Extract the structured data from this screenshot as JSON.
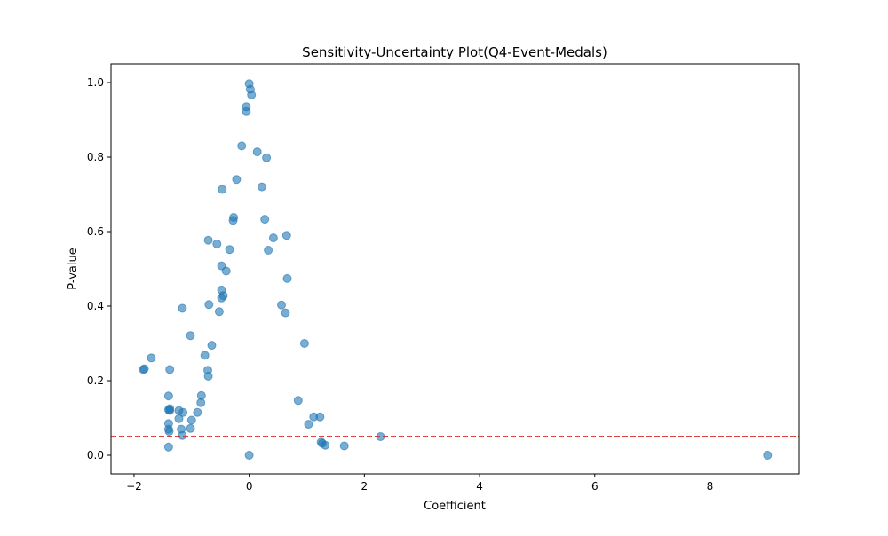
{
  "chart_data": {
    "type": "scatter",
    "title": "Sensitivity-Uncertainty Plot(Q4-Event-Medals)",
    "xlabel": "Coefficient",
    "ylabel": "P-value",
    "xlim": [
      -2.4,
      9.55
    ],
    "ylim": [
      -0.05,
      1.05
    ],
    "xticks": [
      -2,
      0,
      2,
      4,
      6,
      8
    ],
    "yticks": [
      0.0,
      0.2,
      0.4,
      0.6,
      0.8,
      1.0
    ],
    "xtick_labels": [
      "−2",
      "0",
      "2",
      "4",
      "6",
      "8"
    ],
    "ytick_labels": [
      "0.0",
      "0.2",
      "0.4",
      "0.6",
      "0.8",
      "1.0"
    ],
    "grid": false,
    "threshold": {
      "y": 0.05,
      "color": "#d62728",
      "style": "dashed"
    },
    "point_color": "#1f77b4",
    "point_alpha": 0.6,
    "points": [
      [
        0.0,
        0.997
      ],
      [
        0.02,
        0.982
      ],
      [
        0.04,
        0.967
      ],
      [
        -0.05,
        0.935
      ],
      [
        -0.05,
        0.922
      ],
      [
        -0.13,
        0.83
      ],
      [
        0.14,
        0.814
      ],
      [
        0.3,
        0.798
      ],
      [
        -0.22,
        0.74
      ],
      [
        0.22,
        0.72
      ],
      [
        -0.47,
        0.713
      ],
      [
        -0.27,
        0.638
      ],
      [
        -0.28,
        0.63
      ],
      [
        0.27,
        0.633
      ],
      [
        -0.71,
        0.577
      ],
      [
        -0.56,
        0.567
      ],
      [
        0.65,
        0.59
      ],
      [
        0.42,
        0.583
      ],
      [
        -0.34,
        0.552
      ],
      [
        0.33,
        0.55
      ],
      [
        -0.48,
        0.508
      ],
      [
        -0.4,
        0.494
      ],
      [
        0.66,
        0.474
      ],
      [
        -0.48,
        0.443
      ],
      [
        -0.45,
        0.428
      ],
      [
        -0.48,
        0.422
      ],
      [
        -0.7,
        0.404
      ],
      [
        0.56,
        0.403
      ],
      [
        -1.16,
        0.394
      ],
      [
        -0.52,
        0.385
      ],
      [
        0.63,
        0.382
      ],
      [
        -1.02,
        0.321
      ],
      [
        -0.65,
        0.295
      ],
      [
        0.96,
        0.3
      ],
      [
        -1.7,
        0.261
      ],
      [
        -0.77,
        0.268
      ],
      [
        -1.82,
        0.232
      ],
      [
        -1.84,
        0.23
      ],
      [
        -1.38,
        0.23
      ],
      [
        -0.72,
        0.228
      ],
      [
        -0.71,
        0.212
      ],
      [
        -0.83,
        0.16
      ],
      [
        -1.4,
        0.159
      ],
      [
        -0.84,
        0.141
      ],
      [
        0.85,
        0.147
      ],
      [
        -1.38,
        0.125
      ],
      [
        -1.4,
        0.122
      ],
      [
        -1.38,
        0.12
      ],
      [
        -1.22,
        0.12
      ],
      [
        -1.15,
        0.115
      ],
      [
        -0.9,
        0.115
      ],
      [
        1.12,
        0.103
      ],
      [
        1.23,
        0.103
      ],
      [
        -1.22,
        0.098
      ],
      [
        -1.0,
        0.094
      ],
      [
        -1.4,
        0.085
      ],
      [
        1.03,
        0.083
      ],
      [
        -1.4,
        0.07
      ],
      [
        -1.18,
        0.07
      ],
      [
        -1.02,
        0.072
      ],
      [
        -1.39,
        0.064
      ],
      [
        -1.16,
        0.053
      ],
      [
        2.28,
        0.05
      ],
      [
        1.25,
        0.035
      ],
      [
        1.27,
        0.032
      ],
      [
        1.32,
        0.027
      ],
      [
        1.65,
        0.025
      ],
      [
        -1.4,
        0.022
      ],
      [
        0.0,
        0.0
      ],
      [
        9.0,
        0.0
      ]
    ]
  }
}
